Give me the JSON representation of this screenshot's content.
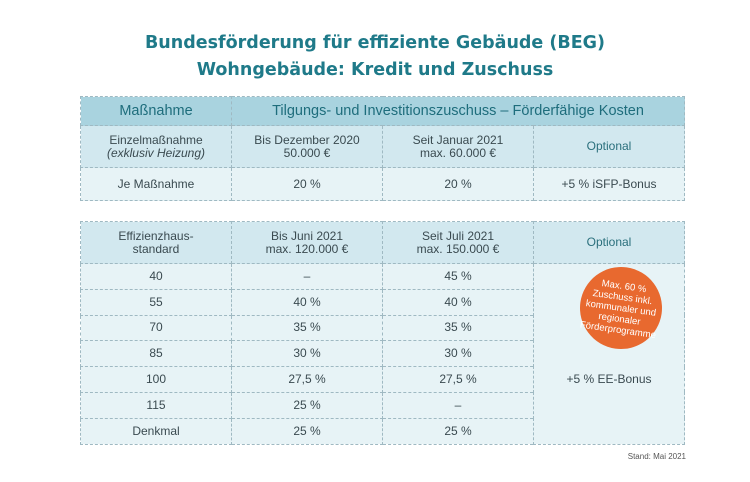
{
  "title": {
    "line1": "Bundesförderung für effiziente Gebäude (BEG)",
    "line2": "Wohngebäude: Kredit und Zuschuss"
  },
  "table1": {
    "header": [
      "Maßnahme",
      "Tilgungs- und Investitionszuschuss – Förderfähige Kosten"
    ],
    "sub": {
      "c1a": "Einzelmaßnahme",
      "c1b": "(exklusiv Heizung)",
      "c2a": "Bis Dezember 2020",
      "c2b": "50.000 €",
      "c3a": "Seit Januar 2021",
      "c3b": "max. 60.000 €",
      "c4": "Optional"
    },
    "row": [
      "Je Maßnahme",
      "20 %",
      "20 %",
      "+5 % iSFP-Bonus"
    ]
  },
  "table2": {
    "header": {
      "c1a": "Effizienzhaus-",
      "c1b": "standard",
      "c2a": "Bis Juni 2021",
      "c2b": "max. 120.000 €",
      "c3a": "Seit Juli 2021",
      "c3b": "max. 150.000 €",
      "c4": "Optional"
    },
    "rows": [
      [
        "40",
        "–",
        "45 %"
      ],
      [
        "55",
        "40 %",
        "40 %"
      ],
      [
        "70",
        "35 %",
        "35 %"
      ],
      [
        "85",
        "30 %",
        "30 %"
      ],
      [
        "100",
        "27,5 %",
        "27,5 %"
      ],
      [
        "115",
        "25 %",
        "–"
      ],
      [
        "Denkmal",
        "25 %",
        "25 %"
      ]
    ],
    "optional": "+5 % EE-Bonus",
    "badge": "Max. 60 % Zuschuss inkl. kommunaler und regionaler Förderprogramme"
  },
  "stand": "Stand: Mai 2021",
  "colors": {
    "title": "#1f7a89",
    "header": "#a9d3df",
    "subheader": "#d2e8ef",
    "row": "#e7f3f6",
    "badge": "#e8692f"
  }
}
